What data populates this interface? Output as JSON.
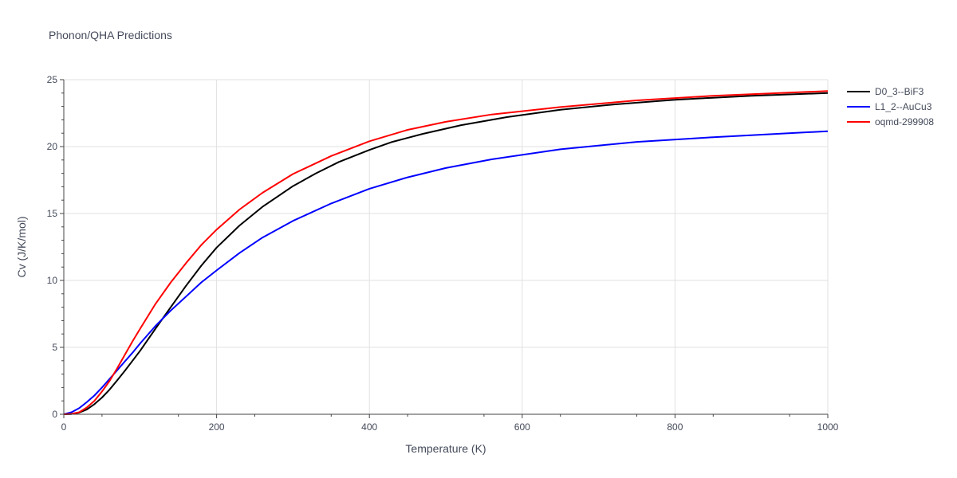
{
  "chart_data": {
    "type": "line",
    "title": "Phonon/QHA Predictions",
    "xlabel": "Temperature (K)",
    "ylabel": "Cv (J/K/mol)",
    "xlim": [
      0,
      1000
    ],
    "ylim": [
      0,
      25
    ],
    "xticks": [
      0,
      200,
      400,
      600,
      800,
      1000
    ],
    "yticks": [
      0,
      5,
      10,
      15,
      20,
      25
    ],
    "grid": true,
    "legend_position": "top-right",
    "series": [
      {
        "name": "D0_3--BiF3",
        "color": "#000000",
        "x": [
          0,
          10,
          20,
          30,
          40,
          50,
          60,
          70,
          80,
          90,
          100,
          120,
          140,
          160,
          180,
          200,
          230,
          260,
          300,
          330,
          360,
          400,
          430,
          470,
          520,
          580,
          650,
          720,
          800,
          900,
          1000
        ],
        "y": [
          0,
          0.02,
          0.12,
          0.35,
          0.75,
          1.25,
          1.85,
          2.55,
          3.25,
          4.0,
          4.75,
          6.4,
          8.0,
          9.6,
          11.1,
          12.45,
          14.1,
          15.5,
          17.05,
          18.0,
          18.85,
          19.75,
          20.35,
          20.95,
          21.6,
          22.2,
          22.75,
          23.15,
          23.5,
          23.8,
          24.0
        ]
      },
      {
        "name": "L1_2--AuCu3",
        "color": "#0000ff",
        "x": [
          0,
          10,
          20,
          30,
          40,
          50,
          60,
          70,
          80,
          90,
          100,
          120,
          140,
          160,
          180,
          200,
          230,
          260,
          300,
          350,
          400,
          450,
          500,
          560,
          650,
          750,
          850,
          1000
        ],
        "y": [
          0,
          0.15,
          0.45,
          0.9,
          1.4,
          2.0,
          2.65,
          3.3,
          3.95,
          4.6,
          5.3,
          6.6,
          7.75,
          8.8,
          9.85,
          10.75,
          12.05,
          13.2,
          14.45,
          15.75,
          16.85,
          17.7,
          18.4,
          19.05,
          19.8,
          20.35,
          20.7,
          21.15
        ]
      },
      {
        "name": "oqmd-299908",
        "color": "#ff0000",
        "x": [
          0,
          10,
          20,
          30,
          40,
          50,
          60,
          70,
          80,
          90,
          100,
          120,
          140,
          160,
          180,
          200,
          230,
          260,
          300,
          350,
          400,
          450,
          500,
          560,
          650,
          750,
          850,
          1000
        ],
        "y": [
          0,
          0.03,
          0.15,
          0.5,
          1.0,
          1.7,
          2.5,
          3.45,
          4.45,
          5.45,
          6.4,
          8.25,
          9.85,
          11.3,
          12.65,
          13.8,
          15.3,
          16.55,
          17.95,
          19.3,
          20.4,
          21.25,
          21.85,
          22.4,
          22.95,
          23.45,
          23.8,
          24.15
        ]
      }
    ]
  }
}
